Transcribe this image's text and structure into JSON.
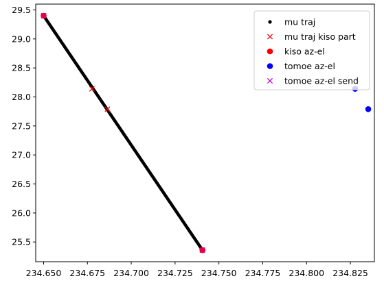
{
  "chart_data": {
    "type": "scatter",
    "title": "",
    "xlabel": "",
    "ylabel": "",
    "xlim": [
      234.6455,
      234.8387
    ],
    "ylim": [
      25.16,
      29.6
    ],
    "xticks": [
      234.65,
      234.675,
      234.7,
      234.725,
      234.75,
      234.775,
      234.8,
      234.825
    ],
    "xtick_labels": [
      "234.650",
      "234.675",
      "234.700",
      "234.725",
      "234.750",
      "234.775",
      "234.800",
      "234.825"
    ],
    "yticks": [
      25.5,
      26.0,
      26.5,
      27.0,
      27.5,
      28.0,
      28.5,
      29.0,
      29.5
    ],
    "ytick_labels": [
      "25.5",
      "26.0",
      "26.5",
      "27.0",
      "27.5",
      "28.0",
      "28.5",
      "29.0",
      "29.5"
    ],
    "grid": false,
    "legend_position": "top-right",
    "series": [
      {
        "name": "mu traj",
        "marker": "dot",
        "color": "#000000",
        "kind": "dense_line",
        "start": [
          234.65,
          29.4
        ],
        "end": [
          234.7406,
          25.36
        ],
        "n_points": 300
      },
      {
        "name": "mu traj kiso part",
        "marker": "x",
        "color": "#ff0000",
        "points": [
          [
            234.65,
            29.4
          ],
          [
            234.6776,
            28.14
          ],
          [
            234.6864,
            27.79
          ],
          [
            234.7406,
            25.36
          ]
        ]
      },
      {
        "name": "kiso az-el",
        "marker": "circle",
        "color": "#ff0000",
        "points": [
          [
            234.65,
            29.4
          ],
          [
            234.7406,
            25.36
          ]
        ]
      },
      {
        "name": "tomoe az-el",
        "marker": "circle",
        "color": "#0000ff",
        "points": [
          [
            234.8277,
            28.14
          ],
          [
            234.8352,
            27.79
          ]
        ]
      },
      {
        "name": "tomoe az-el send",
        "marker": "x",
        "color": "#bf00bf",
        "points": [
          [
            234.65,
            29.4
          ],
          [
            234.7406,
            25.36
          ]
        ]
      }
    ]
  }
}
